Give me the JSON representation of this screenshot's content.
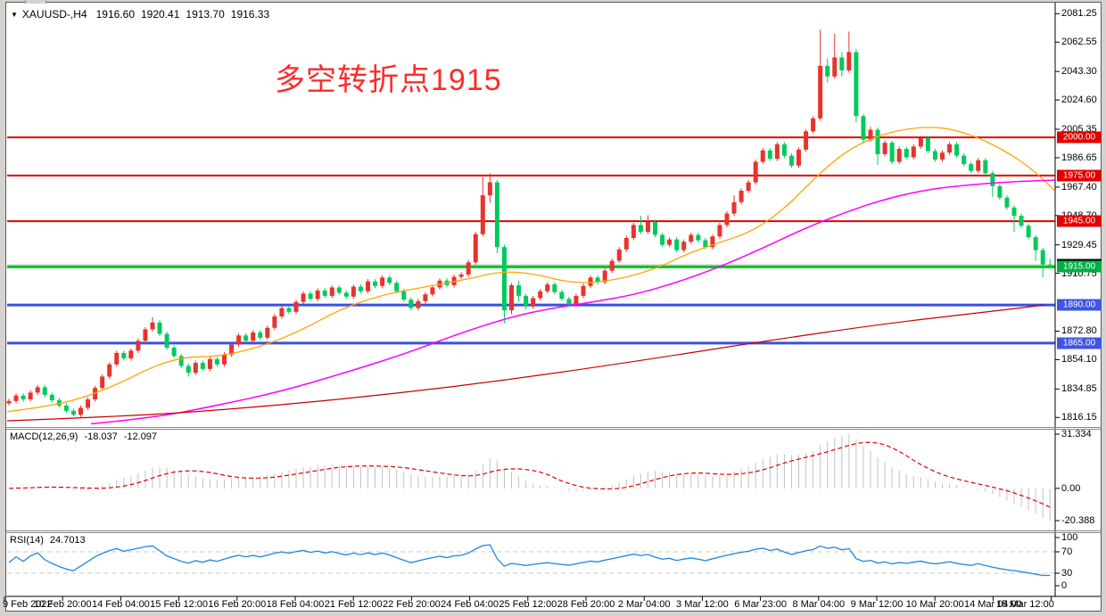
{
  "header": {
    "dropdown_icon": "▼",
    "title": "XAUUSD-,H4",
    "open": "1916.60",
    "high": "1920.41",
    "low": "1913.70",
    "close": "1916.33"
  },
  "annotation": {
    "text": "多空转折点1915",
    "color": "#fb2b2b"
  },
  "chart_data": {
    "type": "candlestick",
    "symbol": "XAUUSD-",
    "timeframe": "H4",
    "up_color": "#e8332c",
    "down_color": "#00ca5d",
    "price_axis": {
      "range_top": 2082.6,
      "range_bottom": 1813.4,
      "ticks": [
        2081.25,
        2062.55,
        2043.3,
        2024.6,
        2005.35,
        1986.65,
        1967.4,
        1948.7,
        1929.45,
        1910.75,
        1872.8,
        1854.1,
        1834.85,
        1816.15
      ]
    },
    "hlines": [
      {
        "price": 2000,
        "label": "2000.00",
        "color": "#e10000",
        "chip": "#e10000",
        "width": 2
      },
      {
        "price": 1975,
        "label": "1975.00",
        "color": "#e10000",
        "chip": "#e10000",
        "width": 2
      },
      {
        "price": 1945,
        "label": "1945.00",
        "color": "#e10000",
        "chip": "#e10000",
        "width": 2
      },
      {
        "price": 1915,
        "label": "1915.00",
        "color": "#00c220",
        "chip": "#00ae46",
        "width": 3
      },
      {
        "price": 1890,
        "label": "1890.00",
        "color": "#3a50e0",
        "chip": "#3f55e0",
        "width": 3
      },
      {
        "price": 1865,
        "label": "1865.00",
        "color": "#3a50e0",
        "chip": "#3f55e0",
        "width": 3
      }
    ],
    "current_price": {
      "value": 1916.33,
      "label": "1916.33",
      "line_color": "#b5b5b5",
      "chip": "#000000"
    },
    "candles": [
      [
        1825.5,
        1828.5,
        1824.0,
        1827.0
      ],
      [
        1827.0,
        1832.0,
        1825.5,
        1830.5
      ],
      [
        1830.5,
        1832.0,
        1826.5,
        1828.0
      ],
      [
        1828.0,
        1834.0,
        1826.5,
        1832.5
      ],
      [
        1832.5,
        1837.5,
        1831.0,
        1836.0
      ],
      [
        1836.0,
        1837.5,
        1829.5,
        1831.0
      ],
      [
        1831.0,
        1832.5,
        1826.0,
        1827.5
      ],
      [
        1827.5,
        1829.0,
        1822.5,
        1824.0
      ],
      [
        1824.0,
        1825.5,
        1819.0,
        1820.5
      ],
      [
        1820.5,
        1822.0,
        1817.0,
        1818.0
      ],
      [
        1818.0,
        1824.0,
        1816.5,
        1822.5
      ],
      [
        1822.5,
        1829.5,
        1821.0,
        1828.0
      ],
      [
        1828.0,
        1837.0,
        1826.5,
        1835.5
      ],
      [
        1835.5,
        1844.5,
        1834.0,
        1843.0
      ],
      [
        1843.0,
        1852.5,
        1841.5,
        1851.0
      ],
      [
        1851.0,
        1860.0,
        1849.5,
        1858.5
      ],
      [
        1858.5,
        1860.0,
        1853.5,
        1855.0
      ],
      [
        1855.0,
        1861.5,
        1853.5,
        1860.0
      ],
      [
        1860.0,
        1868.0,
        1858.5,
        1866.5
      ],
      [
        1866.5,
        1875.5,
        1865.0,
        1874.0
      ],
      [
        1874.0,
        1882.0,
        1872.5,
        1878.5
      ],
      [
        1878.5,
        1880.0,
        1869.5,
        1871.0
      ],
      [
        1871.0,
        1872.5,
        1860.5,
        1862.0
      ],
      [
        1862.0,
        1863.5,
        1855.0,
        1856.5
      ],
      [
        1856.5,
        1858.0,
        1848.5,
        1850.0
      ],
      [
        1850.0,
        1851.5,
        1843.0,
        1845.5
      ],
      [
        1845.5,
        1853.5,
        1844.0,
        1852.0
      ],
      [
        1852.0,
        1853.5,
        1846.5,
        1848.0
      ],
      [
        1848.0,
        1856.0,
        1846.5,
        1854.5
      ],
      [
        1854.5,
        1856.0,
        1849.5,
        1851.0
      ],
      [
        1851.0,
        1859.0,
        1849.5,
        1857.5
      ],
      [
        1857.5,
        1865.5,
        1856.0,
        1864.0
      ],
      [
        1864.0,
        1871.5,
        1862.5,
        1870.0
      ],
      [
        1870.0,
        1871.5,
        1865.0,
        1866.5
      ],
      [
        1866.5,
        1873.5,
        1865.0,
        1872.0
      ],
      [
        1872.0,
        1873.5,
        1867.0,
        1868.5
      ],
      [
        1868.5,
        1876.5,
        1867.0,
        1875.0
      ],
      [
        1875.0,
        1884.0,
        1873.5,
        1882.5
      ],
      [
        1882.5,
        1889.5,
        1881.0,
        1888.0
      ],
      [
        1888.0,
        1889.5,
        1884.0,
        1885.5
      ],
      [
        1885.5,
        1893.5,
        1884.0,
        1892.0
      ],
      [
        1892.0,
        1899.0,
        1890.5,
        1897.5
      ],
      [
        1897.5,
        1899.0,
        1892.5,
        1894.0
      ],
      [
        1894.0,
        1901.0,
        1892.5,
        1899.5
      ],
      [
        1899.5,
        1901.0,
        1894.5,
        1896.0
      ],
      [
        1896.0,
        1903.0,
        1894.5,
        1901.5
      ],
      [
        1901.5,
        1903.0,
        1896.5,
        1898.0
      ],
      [
        1898.0,
        1899.5,
        1894.0,
        1895.5
      ],
      [
        1895.5,
        1903.5,
        1894.0,
        1902.0
      ],
      [
        1902.0,
        1903.5,
        1897.5,
        1899.0
      ],
      [
        1899.0,
        1907.0,
        1897.5,
        1905.5
      ],
      [
        1905.5,
        1907.0,
        1901.0,
        1902.5
      ],
      [
        1902.5,
        1909.5,
        1901.0,
        1908.0
      ],
      [
        1908.0,
        1909.5,
        1903.0,
        1904.5
      ],
      [
        1904.5,
        1906.0,
        1897.5,
        1899.0
      ],
      [
        1899.0,
        1900.5,
        1892.0,
        1893.5
      ],
      [
        1893.5,
        1895.0,
        1886.5,
        1888.0
      ],
      [
        1888.0,
        1894.0,
        1886.5,
        1892.5
      ],
      [
        1892.5,
        1898.5,
        1891.0,
        1897.0
      ],
      [
        1897.0,
        1903.0,
        1895.5,
        1901.5
      ],
      [
        1901.5,
        1907.5,
        1900.0,
        1906.0
      ],
      [
        1906.0,
        1907.5,
        1901.5,
        1903.0
      ],
      [
        1903.0,
        1910.0,
        1901.5,
        1908.5
      ],
      [
        1908.5,
        1911.5,
        1907.0,
        1910.0
      ],
      [
        1910.0,
        1919.5,
        1908.5,
        1918.0
      ],
      [
        1918.0,
        1938.0,
        1916.5,
        1936.5
      ],
      [
        1936.5,
        1974.0,
        1935.0,
        1962.0
      ],
      [
        1962.0,
        1976.5,
        1957.0,
        1970.5
      ],
      [
        1970.5,
        1972.0,
        1924.0,
        1928.0
      ],
      [
        1928.0,
        1929.5,
        1878.0,
        1886.5
      ],
      [
        1886.5,
        1904.5,
        1884.0,
        1903.0
      ],
      [
        1903.0,
        1906.0,
        1892.0,
        1896.0
      ],
      [
        1896.0,
        1897.5,
        1887.0,
        1889.0
      ],
      [
        1889.0,
        1896.0,
        1887.5,
        1894.5
      ],
      [
        1894.5,
        1900.5,
        1893.0,
        1899.0
      ],
      [
        1899.0,
        1905.0,
        1897.5,
        1903.5
      ],
      [
        1903.5,
        1905.0,
        1897.0,
        1898.5
      ],
      [
        1898.5,
        1900.0,
        1892.5,
        1894.0
      ],
      [
        1894.0,
        1895.5,
        1889.0,
        1890.5
      ],
      [
        1890.5,
        1897.5,
        1889.0,
        1896.0
      ],
      [
        1896.0,
        1904.0,
        1894.5,
        1902.5
      ],
      [
        1902.5,
        1909.5,
        1901.0,
        1908.0
      ],
      [
        1908.0,
        1909.5,
        1903.5,
        1905.0
      ],
      [
        1905.0,
        1914.0,
        1903.5,
        1912.5
      ],
      [
        1912.5,
        1920.5,
        1911.0,
        1919.0
      ],
      [
        1919.0,
        1928.0,
        1917.5,
        1926.5
      ],
      [
        1926.5,
        1935.5,
        1925.0,
        1934.0
      ],
      [
        1934.0,
        1944.0,
        1932.5,
        1942.5
      ],
      [
        1942.5,
        1948.5,
        1936.5,
        1938.0
      ],
      [
        1938.0,
        1949.0,
        1936.5,
        1944.5
      ],
      [
        1944.5,
        1946.0,
        1934.5,
        1936.0
      ],
      [
        1936.0,
        1937.5,
        1928.0,
        1929.5
      ],
      [
        1929.5,
        1934.5,
        1928.0,
        1933.0
      ],
      [
        1933.0,
        1934.5,
        1924.5,
        1926.0
      ],
      [
        1926.0,
        1933.0,
        1924.5,
        1931.5
      ],
      [
        1931.5,
        1937.5,
        1930.0,
        1936.0
      ],
      [
        1936.0,
        1937.5,
        1931.0,
        1932.5
      ],
      [
        1932.5,
        1934.0,
        1926.5,
        1928.0
      ],
      [
        1928.0,
        1936.5,
        1926.5,
        1935.0
      ],
      [
        1935.0,
        1944.0,
        1933.5,
        1942.5
      ],
      [
        1942.5,
        1951.5,
        1941.0,
        1950.0
      ],
      [
        1950.0,
        1962.0,
        1948.5,
        1957.5
      ],
      [
        1957.5,
        1966.5,
        1956.0,
        1965.0
      ],
      [
        1965.0,
        1972.0,
        1963.5,
        1970.5
      ],
      [
        1970.5,
        1985.5,
        1969.0,
        1984.0
      ],
      [
        1984.0,
        1993.0,
        1982.5,
        1991.5
      ],
      [
        1991.5,
        1993.0,
        1984.5,
        1986.0
      ],
      [
        1986.0,
        1997.0,
        1984.5,
        1995.5
      ],
      [
        1995.5,
        1997.0,
        1986.5,
        1988.0
      ],
      [
        1988.0,
        1989.5,
        1980.0,
        1981.5
      ],
      [
        1981.5,
        1993.5,
        1980.0,
        1992.0
      ],
      [
        1992.0,
        2005.5,
        1990.5,
        2004.0
      ],
      [
        2004.0,
        2014.0,
        2002.5,
        2012.5
      ],
      [
        2012.5,
        2070.8,
        2011.0,
        2047.0
      ],
      [
        2047.0,
        2052.0,
        2036.0,
        2040.0
      ],
      [
        2040.0,
        2068.0,
        2038.5,
        2052.5
      ],
      [
        2052.5,
        2056.0,
        2040.0,
        2044.0
      ],
      [
        2044.0,
        2069.5,
        2042.5,
        2056.0
      ],
      [
        2056.0,
        2058.0,
        2010.0,
        2014.0
      ],
      [
        2014.0,
        2015.5,
        1996.0,
        1998.5
      ],
      [
        1998.5,
        2007.0,
        1997.0,
        2005.0
      ],
      [
        2005.0,
        2006.5,
        1982.0,
        1989.0
      ],
      [
        1989.0,
        1998.0,
        1987.5,
        1996.5
      ],
      [
        1996.5,
        1998.0,
        1982.5,
        1984.0
      ],
      [
        1984.0,
        1994.0,
        1982.5,
        1992.5
      ],
      [
        1992.5,
        1994.0,
        1985.5,
        1987.0
      ],
      [
        1987.0,
        1995.5,
        1985.5,
        1994.0
      ],
      [
        1994.0,
        2001.0,
        1992.5,
        1999.5
      ],
      [
        1999.5,
        2001.0,
        1989.5,
        1991.0
      ],
      [
        1991.0,
        1992.5,
        1984.0,
        1985.5
      ],
      [
        1985.5,
        1991.5,
        1984.0,
        1990.0
      ],
      [
        1990.0,
        1997.0,
        1988.5,
        1995.5
      ],
      [
        1995.5,
        1997.0,
        1986.5,
        1988.0
      ],
      [
        1988.0,
        1989.5,
        1981.0,
        1982.5
      ],
      [
        1982.5,
        1984.0,
        1976.5,
        1978.0
      ],
      [
        1978.0,
        1986.5,
        1976.5,
        1985.0
      ],
      [
        1985.0,
        1986.5,
        1975.0,
        1976.5
      ],
      [
        1976.5,
        1978.0,
        1961.0,
        1968.0
      ],
      [
        1968.0,
        1969.5,
        1959.0,
        1960.5
      ],
      [
        1960.5,
        1962.0,
        1952.5,
        1954.0
      ],
      [
        1954.0,
        1955.5,
        1938.0,
        1948.5
      ],
      [
        1948.5,
        1950.0,
        1940.5,
        1942.0
      ],
      [
        1942.0,
        1943.5,
        1933.0,
        1934.5
      ],
      [
        1934.5,
        1936.0,
        1919.0,
        1926.0
      ],
      [
        1926.0,
        1927.5,
        1908.2,
        1916.6
      ],
      [
        1916.6,
        1920.41,
        1913.7,
        1916.33
      ]
    ],
    "moving_averages": [
      {
        "name": "ma-fast-orange",
        "color": "#ffa500",
        "width": 1.3,
        "points": [
          [
            0,
            1820
          ],
          [
            0.05,
            1824
          ],
          [
            0.1,
            1836
          ],
          [
            0.14,
            1850
          ],
          [
            0.17,
            1856
          ],
          [
            0.2,
            1856
          ],
          [
            0.24,
            1862
          ],
          [
            0.28,
            1873
          ],
          [
            0.32,
            1888
          ],
          [
            0.36,
            1897
          ],
          [
            0.4,
            1902
          ],
          [
            0.44,
            1907
          ],
          [
            0.47,
            1912
          ],
          [
            0.5,
            1911
          ],
          [
            0.54,
            1904
          ],
          [
            0.58,
            1906
          ],
          [
            0.62,
            1914
          ],
          [
            0.65,
            1924
          ],
          [
            0.68,
            1931
          ],
          [
            0.71,
            1938
          ],
          [
            0.74,
            1952
          ],
          [
            0.77,
            1973
          ],
          [
            0.8,
            1991
          ],
          [
            0.83,
            2001
          ],
          [
            0.86,
            2006
          ],
          [
            0.89,
            2007
          ],
          [
            0.92,
            2002
          ],
          [
            0.95,
            1992
          ],
          [
            0.975,
            1981
          ],
          [
            1,
            1965
          ]
        ]
      },
      {
        "name": "ma-mid-magenta",
        "color": "#ff00ff",
        "width": 1.5,
        "points": [
          [
            0.08,
            1812
          ],
          [
            0.14,
            1816
          ],
          [
            0.2,
            1824
          ],
          [
            0.26,
            1833
          ],
          [
            0.32,
            1845
          ],
          [
            0.38,
            1858
          ],
          [
            0.43,
            1871
          ],
          [
            0.48,
            1882
          ],
          [
            0.52,
            1888
          ],
          [
            0.56,
            1892
          ],
          [
            0.6,
            1897
          ],
          [
            0.64,
            1905
          ],
          [
            0.68,
            1915
          ],
          [
            0.72,
            1927
          ],
          [
            0.76,
            1940
          ],
          [
            0.8,
            1951
          ],
          [
            0.84,
            1960
          ],
          [
            0.88,
            1966
          ],
          [
            0.92,
            1969
          ],
          [
            0.96,
            1971
          ],
          [
            1,
            1972
          ]
        ]
      },
      {
        "name": "ma-slow-darkred",
        "color": "#c80000",
        "width": 1.2,
        "points": [
          [
            0,
            1814
          ],
          [
            0.12,
            1817
          ],
          [
            0.24,
            1823
          ],
          [
            0.36,
            1831
          ],
          [
            0.48,
            1841
          ],
          [
            0.6,
            1853
          ],
          [
            0.72,
            1866
          ],
          [
            0.84,
            1878
          ],
          [
            0.93,
            1885
          ],
          [
            0.99,
            1890
          ]
        ]
      }
    ],
    "macd": {
      "label": "MACD(12,26,9)",
      "main_value": "-18.037",
      "signal_value": "-12.097",
      "axis_labels": [
        "31.334",
        "0.00",
        "-20.388"
      ],
      "histogram_color": "#c2c2c2",
      "signal_color": "#e00000"
    },
    "rsi": {
      "label": "RSI(14)",
      "value": "24.7013",
      "axis_labels": [
        "100",
        "70",
        "30",
        "0"
      ],
      "levels": [
        70,
        30
      ],
      "line_color": "#1f87dd",
      "level_color": "#c8c8c8"
    },
    "time_axis": {
      "labels": [
        "9 Feb 2022",
        "10 Feb 20:00",
        "14 Feb 04:00",
        "15 Feb 12:00",
        "16 Feb 20:00",
        "18 Feb 04:00",
        "21 Feb 12:00",
        "22 Feb 20:00",
        "24 Feb 04:00",
        "25 Feb 12:00",
        "28 Feb 20:00",
        "2 Mar 04:00",
        "3 Mar 12:00",
        "6 Mar 23:00",
        "8 Mar 04:00",
        "9 Mar 12:00",
        "10 Mar 20:00",
        "14 Mar 04:00",
        "15 Mar 12:00"
      ]
    }
  }
}
